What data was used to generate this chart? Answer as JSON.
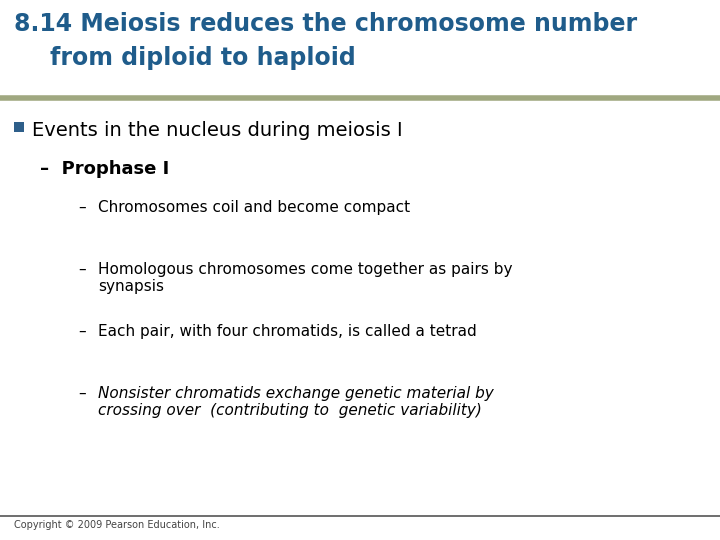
{
  "title_line1": "8.14 Meiosis reduces the chromosome number",
  "title_line2": "from diploid to haploid",
  "title_color": "#1F5C8B",
  "title_fontsize": 17,
  "bg_color": "#FFFFFF",
  "separator_color": "#A0A880",
  "separator_thickness": 4,
  "bullet_color": "#2E5F8A",
  "bullet_text": "Events in the nucleus during meiosis I",
  "bullet_fontsize": 14,
  "sub1_text": "–  Prophase I",
  "sub1_fontsize": 13,
  "sub2_items": [
    "Chromosomes coil and become compact",
    "Homologous chromosomes come together as pairs by\nsynapsis",
    "Each pair, with four chromatids, is called a tetrad",
    "Nonsister chromatids exchange genetic material by\ncrossing over  (contributing to  genetic variability)"
  ],
  "sub2_fontsize": 11,
  "footer_text": "Copyright © 2009 Pearson Education, Inc.",
  "footer_fontsize": 7,
  "footer_color": "#444444",
  "bottom_line_color": "#555555"
}
